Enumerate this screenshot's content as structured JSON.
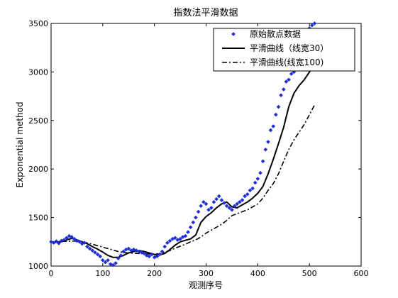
{
  "chart_data": {
    "type": "line",
    "title": "指数法平滑数据",
    "xlabel": "观测序号",
    "ylabel": "Exponential method",
    "xlim": [
      0,
      600
    ],
    "ylim": [
      1000,
      3500
    ],
    "x_ticks": [
      0,
      100,
      200,
      300,
      400,
      500,
      600
    ],
    "y_ticks": [
      1000,
      1500,
      2000,
      2500,
      3000,
      3500
    ],
    "grid": false,
    "legend_position": "top-right",
    "series": [
      {
        "name": "原始散点数据",
        "style": "markers",
        "color": "#1f2fd8",
        "x": [
          0,
          5,
          10,
          15,
          20,
          25,
          30,
          35,
          40,
          45,
          50,
          55,
          60,
          65,
          70,
          75,
          80,
          85,
          90,
          95,
          100,
          105,
          110,
          115,
          120,
          125,
          130,
          135,
          140,
          145,
          150,
          155,
          160,
          165,
          170,
          175,
          180,
          185,
          190,
          195,
          200,
          205,
          210,
          215,
          220,
          225,
          230,
          235,
          240,
          245,
          250,
          255,
          260,
          265,
          270,
          275,
          280,
          285,
          290,
          295,
          300,
          305,
          310,
          315,
          320,
          325,
          330,
          335,
          340,
          345,
          350,
          355,
          360,
          365,
          370,
          375,
          380,
          385,
          390,
          395,
          400,
          405,
          410,
          415,
          420,
          425,
          430,
          435,
          440,
          445,
          450,
          455,
          460,
          465,
          470,
          475,
          480,
          485,
          490,
          495,
          500,
          505,
          510
        ],
        "y": [
          1250,
          1240,
          1255,
          1235,
          1260,
          1270,
          1290,
          1310,
          1300,
          1280,
          1260,
          1250,
          1230,
          1240,
          1200,
          1180,
          1160,
          1140,
          1120,
          1100,
          1060,
          1040,
          1060,
          1020,
          1010,
          1030,
          1080,
          1110,
          1150,
          1170,
          1180,
          1160,
          1170,
          1160,
          1150,
          1140,
          1130,
          1110,
          1100,
          1120,
          1090,
          1100,
          1120,
          1150,
          1200,
          1240,
          1260,
          1280,
          1290,
          1270,
          1280,
          1300,
          1310,
          1350,
          1400,
          1450,
          1500,
          1560,
          1620,
          1660,
          1640,
          1580,
          1600,
          1660,
          1690,
          1720,
          1680,
          1650,
          1620,
          1600,
          1580,
          1620,
          1640,
          1660,
          1680,
          1720,
          1740,
          1780,
          1800,
          1860,
          1900,
          1960,
          2080,
          2200,
          2280,
          2400,
          2440,
          2560,
          2640,
          2760,
          2820,
          2900,
          2920,
          2980,
          3000,
          3050,
          3100,
          3200,
          3300,
          3400,
          3450,
          3480,
          3500
        ]
      },
      {
        "name": "平滑曲线（线宽30）",
        "style": "solid",
        "color": "#000000",
        "x": [
          0,
          10,
          20,
          30,
          40,
          50,
          60,
          70,
          80,
          90,
          100,
          110,
          120,
          130,
          140,
          150,
          160,
          170,
          180,
          190,
          200,
          210,
          220,
          230,
          240,
          250,
          260,
          270,
          280,
          290,
          300,
          310,
          320,
          330,
          340,
          350,
          360,
          370,
          380,
          390,
          400,
          410,
          420,
          430,
          440,
          450,
          460,
          470,
          480,
          490,
          500,
          505
        ],
        "y": [
          1245,
          1245,
          1250,
          1270,
          1285,
          1270,
          1250,
          1230,
          1200,
          1175,
          1145,
          1110,
          1090,
          1090,
          1110,
          1135,
          1150,
          1160,
          1150,
          1135,
          1120,
          1115,
          1130,
          1170,
          1215,
          1250,
          1265,
          1280,
          1320,
          1450,
          1510,
          1550,
          1600,
          1640,
          1660,
          1610,
          1600,
          1630,
          1660,
          1700,
          1750,
          1820,
          1950,
          2100,
          2260,
          2430,
          2640,
          2780,
          2860,
          2920,
          3000,
          3040
        ]
      },
      {
        "name": "平滑曲线(线宽100)",
        "style": "dashdot",
        "color": "#000000",
        "x": [
          0,
          10,
          20,
          30,
          40,
          50,
          60,
          70,
          80,
          90,
          100,
          110,
          120,
          130,
          140,
          150,
          160,
          170,
          180,
          190,
          200,
          210,
          220,
          230,
          240,
          250,
          260,
          270,
          280,
          290,
          300,
          310,
          320,
          330,
          340,
          350,
          360,
          370,
          380,
          390,
          400,
          410,
          420,
          430,
          440,
          450,
          460,
          470,
          480,
          490,
          500,
          510
        ],
        "y": [
          1250,
          1250,
          1252,
          1255,
          1258,
          1255,
          1248,
          1238,
          1225,
          1210,
          1195,
          1180,
          1165,
          1150,
          1140,
          1135,
          1132,
          1130,
          1128,
          1125,
          1122,
          1128,
          1140,
          1160,
          1185,
          1205,
          1225,
          1250,
          1270,
          1300,
          1340,
          1370,
          1400,
          1430,
          1470,
          1520,
          1540,
          1560,
          1580,
          1610,
          1640,
          1700,
          1780,
          1850,
          1950,
          2080,
          2200,
          2300,
          2380,
          2460,
          2560,
          2660
        ]
      }
    ]
  }
}
